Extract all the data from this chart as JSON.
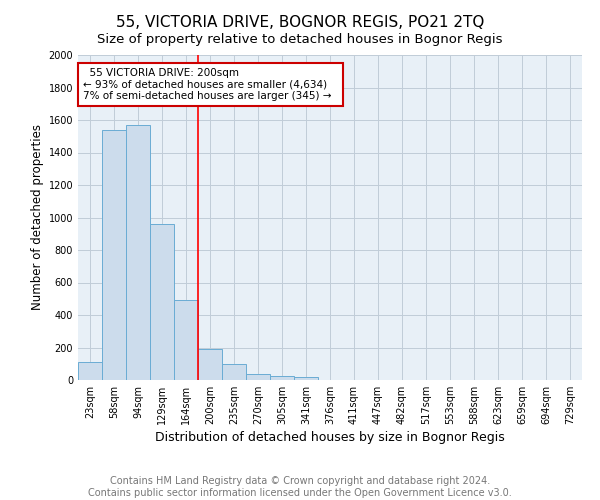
{
  "title": "55, VICTORIA DRIVE, BOGNOR REGIS, PO21 2TQ",
  "subtitle": "Size of property relative to detached houses in Bognor Regis",
  "xlabel": "Distribution of detached houses by size in Bognor Regis",
  "ylabel": "Number of detached properties",
  "categories": [
    "23sqm",
    "58sqm",
    "94sqm",
    "129sqm",
    "164sqm",
    "200sqm",
    "235sqm",
    "270sqm",
    "305sqm",
    "341sqm",
    "376sqm",
    "411sqm",
    "447sqm",
    "482sqm",
    "517sqm",
    "553sqm",
    "588sqm",
    "623sqm",
    "659sqm",
    "694sqm",
    "729sqm"
  ],
  "bar_heights": [
    110,
    1540,
    1570,
    960,
    490,
    190,
    100,
    40,
    25,
    20,
    0,
    0,
    0,
    0,
    0,
    0,
    0,
    0,
    0,
    0,
    0
  ],
  "bar_color": "#ccdcec",
  "bar_edge_color": "#6aacd4",
  "red_line_index": 5,
  "annotation_title": "55 VICTORIA DRIVE: 200sqm",
  "annotation_line1": "← 93% of detached houses are smaller (4,634)",
  "annotation_line2": "7% of semi-detached houses are larger (345) →",
  "annotation_box_color": "#ffffff",
  "annotation_box_edge_color": "#cc0000",
  "footer_line1": "Contains HM Land Registry data © Crown copyright and database right 2024.",
  "footer_line2": "Contains public sector information licensed under the Open Government Licence v3.0.",
  "ylim": [
    0,
    2000
  ],
  "background_color": "#ffffff",
  "axes_bg_color": "#e8f0f7",
  "grid_color": "#c0ccd8",
  "title_fontsize": 11,
  "subtitle_fontsize": 9.5,
  "ylabel_fontsize": 8.5,
  "xlabel_fontsize": 9,
  "tick_fontsize": 7,
  "footer_fontsize": 7,
  "annotation_fontsize": 7.5
}
